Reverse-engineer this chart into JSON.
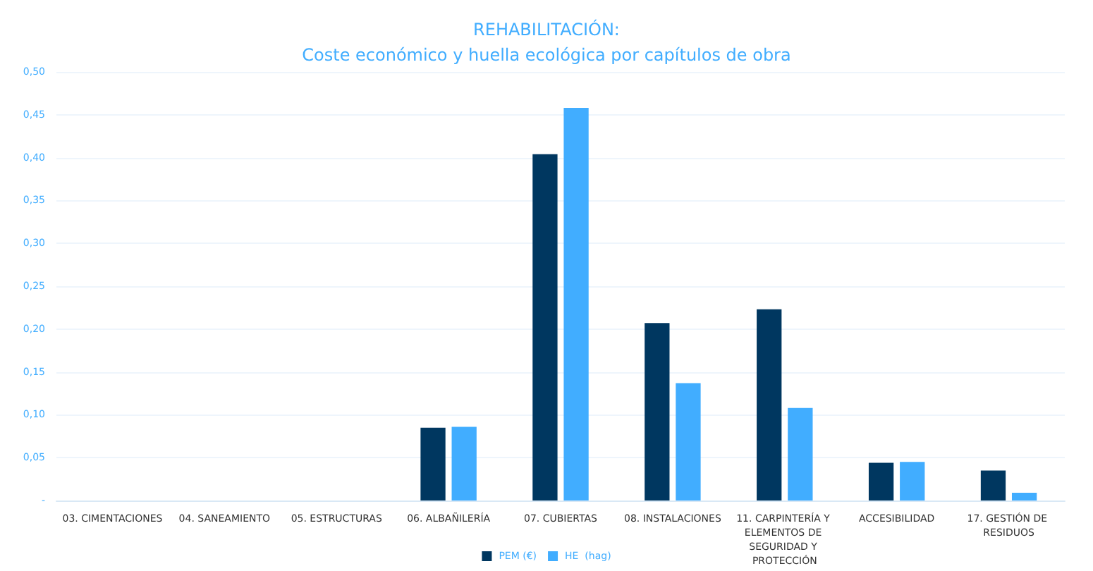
{
  "chart_data": {
    "type": "bar",
    "title": "REHABILITACIÓN:",
    "subtitle": "Coste económico y huella ecológica por capítulos de obra",
    "categories": [
      "03. CIMENTACIONES",
      "04. SANEAMIENTO",
      "05. ESTRUCTURAS",
      "06. ALBAÑILERÍA",
      "07. CUBIERTAS",
      "08. INSTALACIONES",
      "11. CARPINTERÍA Y ELEMENTOS DE SEGURIDAD Y PROTECCIÓN",
      "ACCESIBILIDAD",
      "17. GESTIÓN DE RESIDUOS"
    ],
    "series": [
      {
        "name": "PEM (€)",
        "color": "#003760",
        "values": [
          null,
          null,
          null,
          0.085,
          0.404,
          0.207,
          0.223,
          0.044,
          0.035
        ]
      },
      {
        "name": "HE  (hag)",
        "color": "#41adff",
        "values": [
          null,
          null,
          null,
          0.086,
          0.458,
          0.137,
          0.108,
          0.045,
          0.009
        ]
      }
    ],
    "ylim": [
      0,
      0.5
    ],
    "yticks": [
      {
        "value": 0,
        "label": "-"
      },
      {
        "value": 0.05,
        "label": "0,05"
      },
      {
        "value": 0.1,
        "label": "0,10"
      },
      {
        "value": 0.15,
        "label": "0,15"
      },
      {
        "value": 0.2,
        "label": "0,20"
      },
      {
        "value": 0.25,
        "label": "0,25"
      },
      {
        "value": 0.3,
        "label": "0,30"
      },
      {
        "value": 0.35,
        "label": "0,35"
      },
      {
        "value": 0.4,
        "label": "0,40"
      },
      {
        "value": 0.45,
        "label": "0,45"
      },
      {
        "value": 0.5,
        "label": "0,50"
      }
    ],
    "grid": "y",
    "legend": "bottom"
  }
}
